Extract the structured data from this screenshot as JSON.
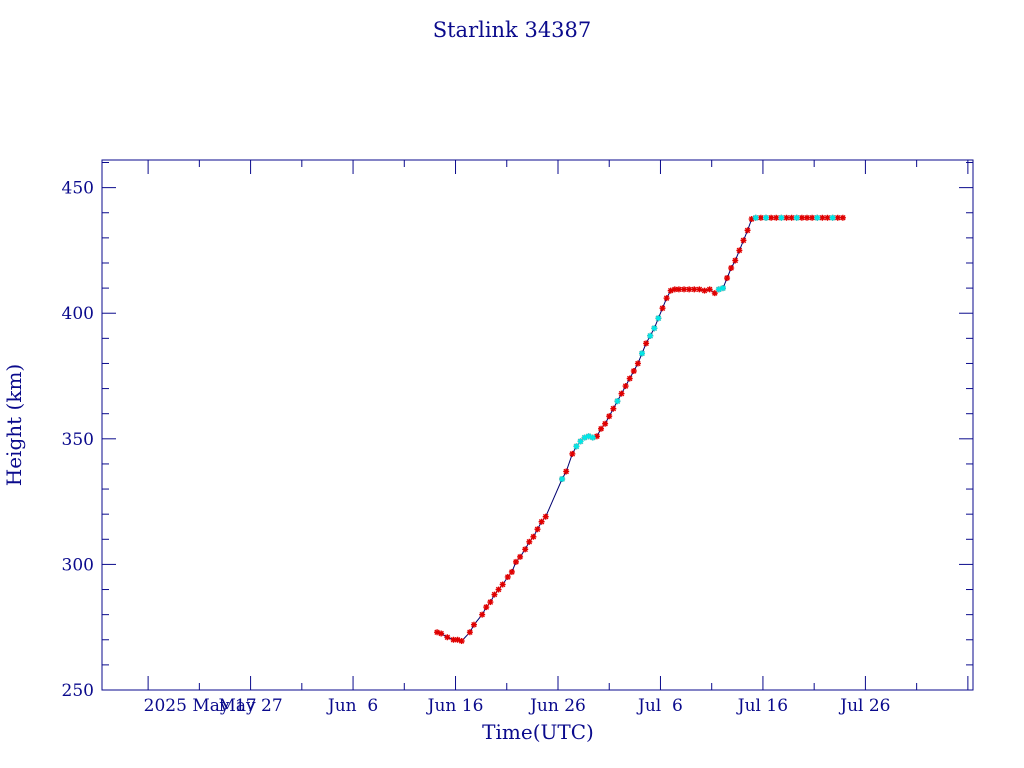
{
  "chart_data": {
    "type": "scatter",
    "title": "Starlink 34387",
    "xlabel": "Time(UTC)",
    "ylabel": "Height (km)",
    "x_ticks": [
      "2025 May 17",
      "May 27",
      "Jun  6",
      "Jun 16",
      "Jun 26",
      "Jul  6",
      "Jul 16",
      "Jul 26"
    ],
    "x_tick_days": [
      0,
      10,
      20,
      30,
      40,
      50,
      60,
      70
    ],
    "xlim_days": [
      -4.5,
      80.5
    ],
    "ylim": [
      250,
      461
    ],
    "y_ticks": [
      250,
      300,
      350,
      400,
      450
    ],
    "grid": false,
    "colors": {
      "axis": "#0a0a8c",
      "line": "#000070",
      "marker_primary": "#e00000",
      "marker_secondary": "#00e8e8"
    },
    "series": [
      {
        "points": [
          [
            28.2,
            273
          ],
          [
            28.6,
            272.5
          ],
          [
            29.2,
            271
          ],
          [
            29.8,
            270
          ],
          [
            30.2,
            270
          ],
          [
            30.6,
            269.5
          ],
          [
            31.4,
            273
          ],
          [
            31.8,
            276
          ],
          [
            32.6,
            280
          ],
          [
            33.0,
            283
          ],
          [
            33.4,
            285
          ],
          [
            33.8,
            288
          ],
          [
            34.2,
            290
          ],
          [
            34.6,
            292
          ],
          [
            35.1,
            295
          ],
          [
            35.5,
            297
          ],
          [
            35.9,
            301
          ],
          [
            36.3,
            303
          ],
          [
            36.8,
            306
          ],
          [
            37.2,
            309
          ],
          [
            37.6,
            311
          ],
          [
            38.0,
            314
          ],
          [
            38.4,
            317
          ],
          [
            38.8,
            319
          ],
          [
            40.4,
            334
          ],
          [
            40.8,
            337
          ],
          [
            41.4,
            344
          ],
          [
            41.8,
            347
          ],
          [
            42.2,
            349
          ],
          [
            42.6,
            350.5
          ],
          [
            43.0,
            351
          ],
          [
            43.4,
            350.5
          ],
          [
            43.8,
            351
          ],
          [
            44.2,
            354
          ],
          [
            44.6,
            356
          ],
          [
            45.0,
            359
          ],
          [
            45.4,
            362
          ],
          [
            45.8,
            365
          ],
          [
            46.2,
            368
          ],
          [
            46.6,
            371
          ],
          [
            47.0,
            374
          ],
          [
            47.4,
            377
          ],
          [
            47.8,
            380
          ],
          [
            48.2,
            384
          ],
          [
            48.6,
            388
          ],
          [
            49.0,
            391
          ],
          [
            49.4,
            394
          ],
          [
            49.8,
            398
          ],
          [
            50.2,
            402
          ],
          [
            50.6,
            406
          ],
          [
            51.0,
            409
          ],
          [
            51.4,
            409.5
          ],
          [
            51.8,
            409.5
          ],
          [
            52.3,
            409.5
          ],
          [
            52.8,
            409.5
          ],
          [
            53.3,
            409.5
          ],
          [
            53.8,
            409.5
          ],
          [
            54.3,
            409
          ],
          [
            54.8,
            409.5
          ],
          [
            55.3,
            408
          ],
          [
            55.7,
            409.5
          ],
          [
            56.1,
            410
          ],
          [
            56.5,
            414
          ],
          [
            56.9,
            418
          ],
          [
            57.3,
            421
          ],
          [
            57.7,
            425
          ],
          [
            58.1,
            429
          ],
          [
            58.5,
            433
          ],
          [
            58.9,
            437.5
          ],
          [
            59.3,
            438
          ],
          [
            59.8,
            438
          ],
          [
            60.3,
            438
          ],
          [
            60.8,
            438
          ],
          [
            61.3,
            438
          ],
          [
            61.8,
            438
          ],
          [
            62.3,
            438
          ],
          [
            62.8,
            438
          ],
          [
            63.3,
            438
          ],
          [
            63.8,
            438
          ],
          [
            64.3,
            438
          ],
          [
            64.8,
            438
          ],
          [
            65.3,
            438
          ],
          [
            65.8,
            438
          ],
          [
            66.3,
            438
          ],
          [
            66.8,
            438
          ],
          [
            67.3,
            438
          ],
          [
            67.8,
            438
          ]
        ],
        "secondary_points": [
          [
            40.4,
            334
          ],
          [
            41.8,
            347
          ],
          [
            42.2,
            349
          ],
          [
            42.6,
            350.5
          ],
          [
            43.0,
            351
          ],
          [
            43.4,
            350.5
          ],
          [
            45.8,
            365
          ],
          [
            48.2,
            384
          ],
          [
            49.0,
            391
          ],
          [
            49.4,
            394
          ],
          [
            49.8,
            398
          ],
          [
            55.7,
            409.5
          ],
          [
            56.1,
            410
          ],
          [
            59.3,
            438
          ],
          [
            60.3,
            438
          ],
          [
            61.8,
            438
          ],
          [
            63.3,
            438
          ],
          [
            65.3,
            438
          ],
          [
            66.8,
            438
          ]
        ]
      }
    ]
  }
}
